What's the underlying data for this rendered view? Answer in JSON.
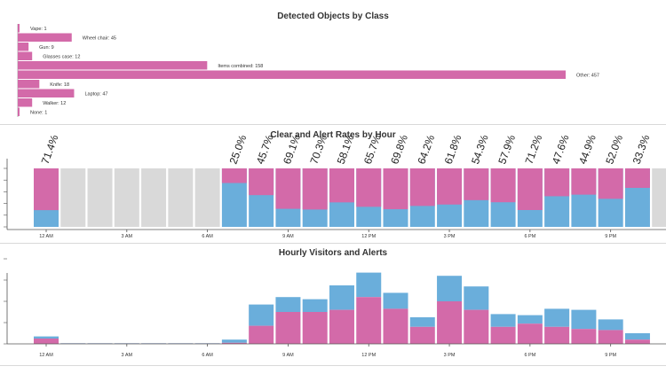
{
  "colors": {
    "pink": "#d36aa9",
    "blue": "#6aaedb",
    "grey": "#d9d9d9",
    "axis": "#555555"
  },
  "chart_data": [
    {
      "type": "bar",
      "orientation": "horizontal",
      "title": "Detected Objects by Class",
      "categories": [
        "Vape",
        "Wheel chair",
        "Gun",
        "Glasses case",
        "Items combined",
        "Other",
        "Knife",
        "Laptop",
        "Walker",
        "None"
      ],
      "values": [
        1,
        45,
        9,
        12,
        158,
        457,
        18,
        47,
        12,
        1
      ],
      "labels": [
        "Vape: 1",
        "Wheel chair: 45",
        "Gun: 9",
        "Glasses case: 12",
        "Items combined: 158",
        "Other: 457",
        "Knife: 18",
        "Laptop: 47",
        "Walker: 12",
        "None: 1"
      ]
    },
    {
      "type": "bar",
      "stacked": true,
      "title": "Clear and Alert Rates by Hour",
      "hours": [
        0,
        1,
        2,
        3,
        4,
        5,
        6,
        7,
        8,
        9,
        10,
        11,
        12,
        13,
        14,
        15,
        16,
        17,
        18,
        19,
        20,
        21,
        22,
        23
      ],
      "alert_rate_pct": [
        71.4,
        null,
        null,
        null,
        null,
        null,
        null,
        25.0,
        45.7,
        69.1,
        70.3,
        58.1,
        65.7,
        69.8,
        64.2,
        61.8,
        54.3,
        57.9,
        71.2,
        47.6,
        44.9,
        52.0,
        33.3,
        null
      ],
      "rate_labels": [
        "71.4%",
        "",
        "",
        "",
        "",
        "",
        "",
        "25.0%",
        "45.7%",
        "69.1%",
        "70.3%",
        "58.1%",
        "65.7%",
        "69.8%",
        "64.2%",
        "61.8%",
        "54.3%",
        "57.9%",
        "71.2%",
        "47.6%",
        "44.9%",
        "52.0%",
        "33.3%",
        ""
      ],
      "xticks": [
        {
          "hour": 0,
          "label": "12 AM"
        },
        {
          "hour": 3,
          "label": "3 AM"
        },
        {
          "hour": 6,
          "label": "6 AM"
        },
        {
          "hour": 9,
          "label": "9 AM"
        },
        {
          "hour": 12,
          "label": "12 PM"
        },
        {
          "hour": 15,
          "label": "3 PM"
        },
        {
          "hour": 18,
          "label": "6 PM"
        },
        {
          "hour": 21,
          "label": "9 PM"
        }
      ],
      "ylim": [
        0,
        100
      ]
    },
    {
      "type": "bar",
      "stacked": true,
      "title": "Hourly Visitors and Alerts",
      "hours": [
        0,
        1,
        2,
        3,
        4,
        5,
        6,
        7,
        8,
        9,
        10,
        11,
        12,
        13,
        14,
        15,
        16,
        17,
        18,
        19,
        20,
        21,
        22,
        23
      ],
      "alerts": [
        5,
        0.3,
        0.3,
        0.3,
        0.3,
        0.3,
        0.3,
        1,
        17,
        30,
        30,
        32,
        44,
        33,
        16,
        40,
        32,
        16,
        19,
        16,
        14,
        13,
        4,
        0
      ],
      "clear": [
        2,
        0.3,
        0.3,
        0.3,
        0.3,
        0.3,
        0.3,
        3,
        20,
        14,
        12,
        23,
        23,
        15,
        9,
        24,
        22,
        12,
        8,
        17,
        18,
        10,
        6,
        0
      ],
      "ylim": [
        0,
        80
      ]
    }
  ]
}
